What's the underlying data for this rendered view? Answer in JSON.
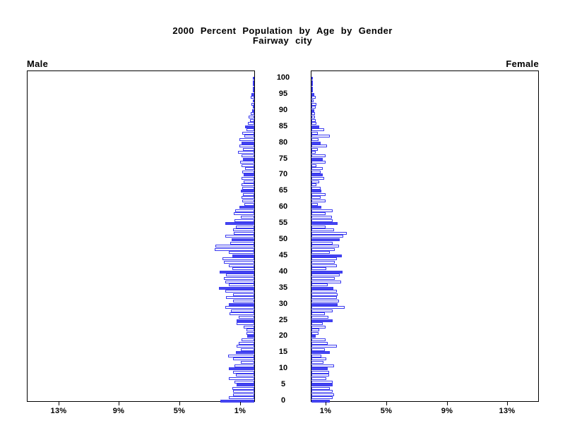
{
  "title": {
    "line1": "2000 Percent Population by Age by Gender",
    "line2": "Fairway city"
  },
  "headers": {
    "left": "Male",
    "right": "Female"
  },
  "colors": {
    "bar_outline": "#3a3af0",
    "bar_solid_fill": "#4646f0",
    "bar_empty_fill": "#ffffff",
    "axis": "#000000",
    "background": "#ffffff",
    "text": "#000000"
  },
  "age_axis": {
    "tick_labels": [
      "0",
      "5",
      "10",
      "15",
      "20",
      "25",
      "30",
      "35",
      "40",
      "45",
      "50",
      "55",
      "60",
      "65",
      "70",
      "75",
      "80",
      "85",
      "90",
      "95",
      "100"
    ]
  },
  "x_axis": {
    "unit": "percent",
    "max_percent": 15,
    "tick_percents": [
      1,
      5,
      9,
      13
    ],
    "left_tick_labels": [
      "13%",
      "9%",
      "5%",
      "1%"
    ],
    "right_tick_labels": [
      "1%",
      "5%",
      "9%",
      "13%"
    ]
  },
  "chart_data": {
    "type": "bar",
    "subtype": "population-pyramid",
    "title": "2000 Percent Population by Age by Gender",
    "subtitle": "Fairway city",
    "orientation": "horizontal-mirrored",
    "age_min": 0,
    "age_max": 100,
    "age_label_step": 5,
    "xlim_percent": [
      0,
      15
    ],
    "solid_fill_rule": "ages divisible by 5 are solid blue; other ages white with blue outline",
    "series": [
      {
        "name": "Male",
        "side": "left",
        "unit": "percent of population",
        "values_age_0_to_100": [
          2.25,
          1.7,
          1.4,
          1.4,
          1.45,
          1.15,
          1.3,
          1.7,
          1.2,
          1.4,
          1.7,
          1.3,
          0.9,
          1.4,
          1.75,
          1.2,
          0.9,
          1.15,
          1.05,
          0.85,
          0.45,
          0.5,
          0.5,
          0.7,
          1.15,
          1.15,
          1.05,
          1.65,
          1.55,
          1.9,
          1.7,
          1.4,
          1.85,
          1.4,
          1.9,
          2.35,
          1.7,
          1.9,
          2.0,
          1.85,
          2.3,
          1.45,
          1.7,
          2.0,
          2.1,
          1.45,
          1.7,
          2.6,
          2.55,
          1.6,
          1.5,
          1.9,
          1.35,
          1.4,
          1.2,
          1.9,
          1.3,
          0.9,
          1.35,
          1.25,
          1.0,
          0.65,
          0.8,
          0.85,
          0.75,
          0.9,
          0.8,
          0.85,
          0.72,
          0.85,
          0.72,
          0.8,
          0.6,
          0.83,
          0.95,
          0.74,
          0.85,
          1.08,
          0.75,
          1.0,
          0.85,
          0.98,
          0.67,
          0.78,
          0.51,
          0.59,
          0.43,
          0.28,
          0.39,
          0.25,
          0.12,
          0.05,
          0.17,
          0.05,
          0.23,
          0.2,
          0.0,
          0.05,
          0.0,
          0.0,
          0.05
        ]
      },
      {
        "name": "Female",
        "side": "right",
        "unit": "percent of population",
        "values_age_0_to_100": [
          1.23,
          1.39,
          1.5,
          1.39,
          1.23,
          1.39,
          1.39,
          0.98,
          1.19,
          1.19,
          1.08,
          1.5,
          0.8,
          0.98,
          0.64,
          1.23,
          0.9,
          1.66,
          1.08,
          0.92,
          0.3,
          0.45,
          0.52,
          0.92,
          0.77,
          1.39,
          1.14,
          0.88,
          1.39,
          2.2,
          1.73,
          1.81,
          1.7,
          1.73,
          1.7,
          1.45,
          1.08,
          1.97,
          1.55,
          1.86,
          2.05,
          0.98,
          1.66,
          1.55,
          1.7,
          2.0,
          1.23,
          1.55,
          1.81,
          1.42,
          1.86,
          2.1,
          2.33,
          1.5,
          0.92,
          1.73,
          1.39,
          1.34,
          0.92,
          1.39,
          0.67,
          0.4,
          0.95,
          0.6,
          0.95,
          0.67,
          0.6,
          0.33,
          0.52,
          0.83,
          0.77,
          0.6,
          0.77,
          0.33,
          0.92,
          0.77,
          0.92,
          0.3,
          0.4,
          1.03,
          0.6,
          0.48,
          1.23,
          0.4,
          0.83,
          0.52,
          0.35,
          0.3,
          0.25,
          0.25,
          0.2,
          0.3,
          0.33,
          0.12,
          0.3,
          0.2,
          0.02,
          0.06,
          0.04,
          0.02,
          0.05
        ]
      }
    ]
  }
}
